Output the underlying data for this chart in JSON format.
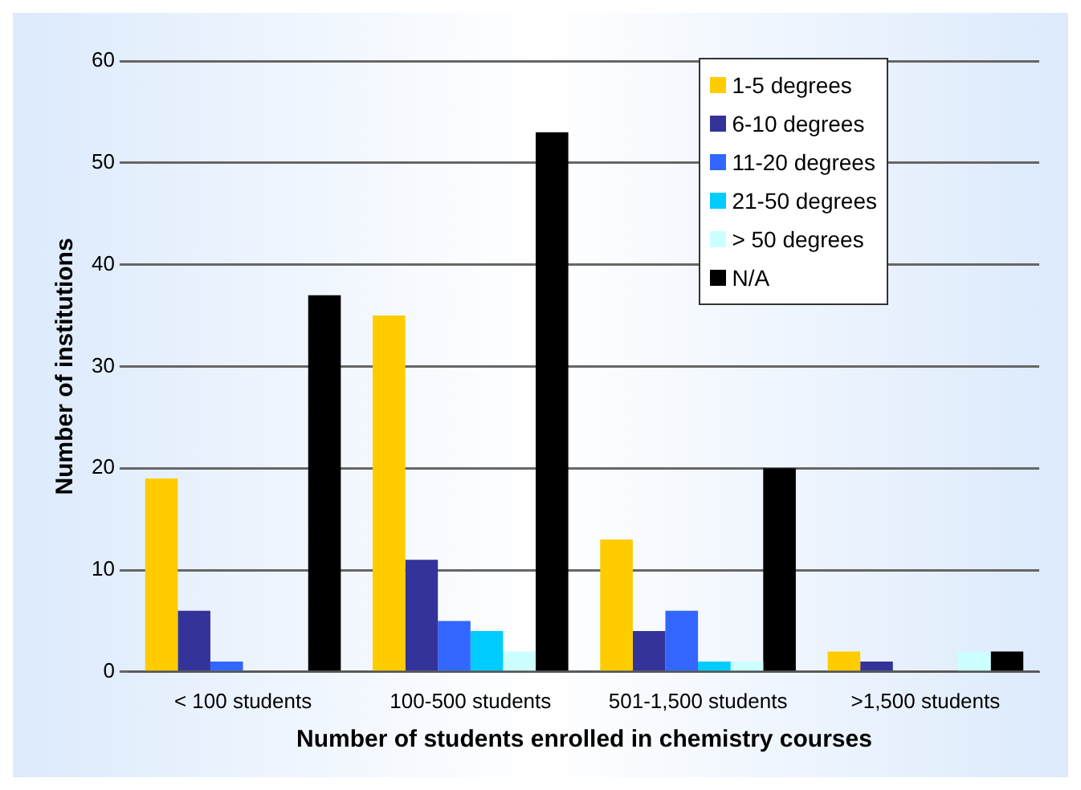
{
  "chart_data": {
    "type": "bar",
    "xlabel": "Number of students enrolled in chemistry courses",
    "ylabel": "Number of institutions",
    "categories": [
      "< 100 students",
      "100-500 students",
      "501-1,500 students",
      ">1,500 students"
    ],
    "series": [
      {
        "name": "1-5 degrees",
        "color": "#ffcc00",
        "values": [
          19,
          35,
          13,
          2
        ]
      },
      {
        "name": "6-10 degrees",
        "color": "#333399",
        "values": [
          6,
          11,
          4,
          1
        ]
      },
      {
        "name": "11-20 degrees",
        "color": "#3366ff",
        "values": [
          1,
          5,
          6,
          0
        ]
      },
      {
        "name": "21-50 degrees",
        "color": "#00ccff",
        "values": [
          0,
          4,
          1,
          0
        ]
      },
      {
        "name": "> 50 degrees",
        "color": "#ccffff",
        "values": [
          0,
          2,
          1,
          2
        ]
      },
      {
        "name": "N/A",
        "color": "#000000",
        "values": [
          37,
          53,
          20,
          2
        ]
      }
    ],
    "ylim": [
      0,
      60
    ],
    "yticks": [
      0,
      10,
      20,
      30,
      40,
      50,
      60
    ],
    "grid": "y",
    "legend": "top right"
  }
}
